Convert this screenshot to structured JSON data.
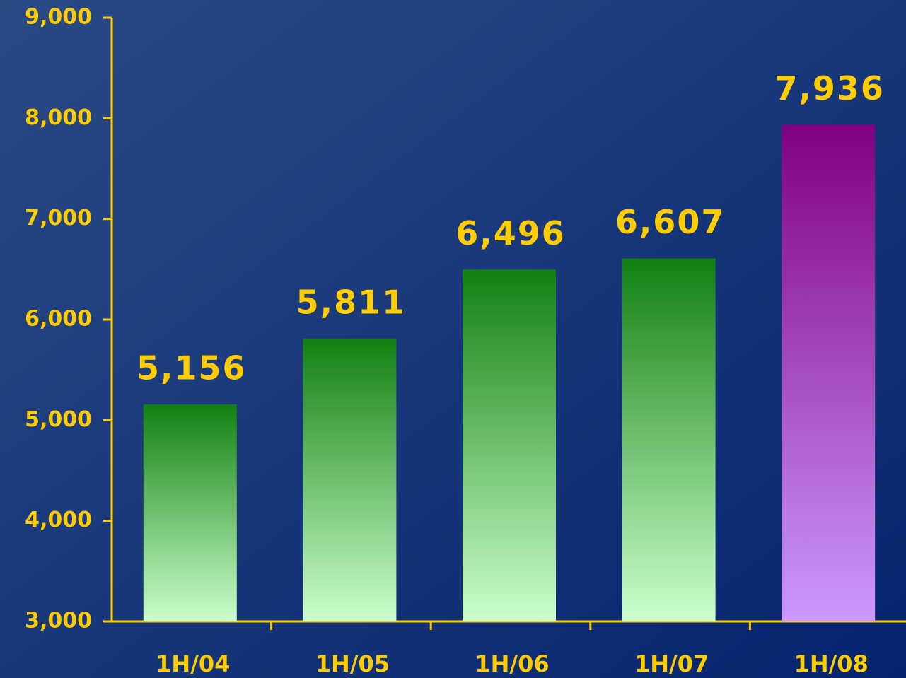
{
  "chart_data": {
    "type": "bar",
    "categories": [
      "1H/04",
      "1H/05",
      "1H/06",
      "1H/07",
      "1H/08"
    ],
    "values": [
      5156,
      5811,
      6496,
      6607,
      7936
    ],
    "value_labels": [
      "5,156",
      "5,811",
      "6,496",
      "6,607",
      "7,936"
    ],
    "colors": [
      [
        "#128012",
        "#ccffcc"
      ],
      [
        "#128012",
        "#ccffcc"
      ],
      [
        "#128012",
        "#ccffcc"
      ],
      [
        "#128012",
        "#ccffcc"
      ],
      [
        "#800080",
        "#cc99ff"
      ]
    ],
    "ylim": [
      3000,
      9000
    ],
    "yticks": [
      {
        "value": 3000,
        "label": "3,000"
      },
      {
        "value": 4000,
        "label": "4,000"
      },
      {
        "value": 5000,
        "label": "5,000"
      },
      {
        "value": 6000,
        "label": "6,000"
      },
      {
        "value": 7000,
        "label": "7,000"
      },
      {
        "value": 8000,
        "label": "8,000"
      },
      {
        "value": 9000,
        "label": "9,000"
      }
    ],
    "grid": false
  }
}
